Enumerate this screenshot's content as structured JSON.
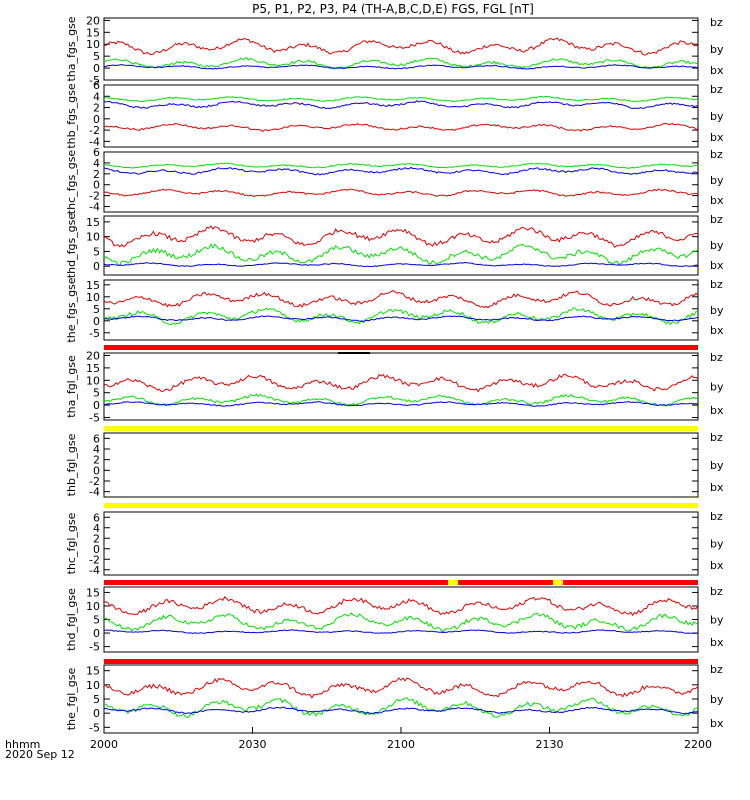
{
  "title": "P5, P1, P2, P3, P4 (TH-A,B,C,D,E) FGS, FGL [nT]",
  "bottom_label": {
    "line1": "hhmm",
    "line2": "2020 Sep 12"
  },
  "x_ticks": [
    "2000",
    "2030",
    "2100",
    "2130",
    "2200"
  ],
  "legend": {
    "bz": "bz",
    "by": "by",
    "bx": "bx"
  },
  "colors": {
    "bz": "#e00000",
    "by": "#00e000",
    "bx": "#0000e0",
    "flag_red": "#ff0000",
    "flag_yellow": "#ffff00",
    "axis": "#000000"
  },
  "chart_data": [
    {
      "type": "line",
      "ylabel": "tha_fgs_gse",
      "yticks": [
        "20",
        "15",
        "10",
        "5",
        "0",
        "-5"
      ],
      "ylim": [
        -5,
        21
      ],
      "has_data": true,
      "x": [
        "2000",
        "2030",
        "2100",
        "2130",
        "2200"
      ],
      "series": [
        {
          "name": "bz",
          "level": 9,
          "amp": 3
        },
        {
          "name": "by",
          "level": 2,
          "amp": 2
        },
        {
          "name": "bx",
          "level": 0.5,
          "amp": 0.8
        }
      ]
    },
    {
      "type": "line",
      "ylabel": "thb_fgs_gse",
      "yticks": [
        "6",
        "4",
        "2",
        "0",
        "-2",
        "-4"
      ],
      "ylim": [
        -5,
        6
      ],
      "has_data": true,
      "series": [
        {
          "name": "by",
          "level": 3.5,
          "amp": 0.4
        },
        {
          "name": "bx",
          "level": 2.5,
          "amp": 0.6
        },
        {
          "name": "bz",
          "level": -1.5,
          "amp": 0.6
        }
      ]
    },
    {
      "type": "line",
      "ylabel": "thc_fgs_gse",
      "yticks": [
        "6",
        "4",
        "2",
        "0",
        "-2",
        "-4"
      ],
      "ylim": [
        -5,
        6
      ],
      "has_data": true,
      "series": [
        {
          "name": "by",
          "level": 3.5,
          "amp": 0.4
        },
        {
          "name": "bx",
          "level": 2.5,
          "amp": 0.6
        },
        {
          "name": "bz",
          "level": -1.5,
          "amp": 0.6
        }
      ]
    },
    {
      "type": "line",
      "ylabel": "thd_fgs_gse",
      "yticks": [
        "15",
        "10",
        "5",
        "0"
      ],
      "ylim": [
        -3,
        17
      ],
      "has_data": true,
      "series": [
        {
          "name": "bz",
          "level": 10,
          "amp": 3
        },
        {
          "name": "by",
          "level": 4,
          "amp": 3
        },
        {
          "name": "bx",
          "level": 0.5,
          "amp": 0.6
        }
      ]
    },
    {
      "type": "line",
      "ylabel": "the_fgs_gse",
      "yticks": [
        "15",
        "10",
        "5",
        "0",
        "-5"
      ],
      "ylim": [
        -8,
        17
      ],
      "has_data": true,
      "series": [
        {
          "name": "bz",
          "level": 9,
          "amp": 3
        },
        {
          "name": "by",
          "level": 2,
          "amp": 3
        },
        {
          "name": "bx",
          "level": 1,
          "amp": 1
        }
      ]
    },
    {
      "type": "line",
      "ylabel": "tha_fgl_gse",
      "yticks": [
        "20",
        "15",
        "10",
        "5",
        "0",
        "-5"
      ],
      "ylim": [
        -6,
        21
      ],
      "has_data": true,
      "series": [
        {
          "name": "bz",
          "level": 9,
          "amp": 3
        },
        {
          "name": "by",
          "level": 2,
          "amp": 2
        },
        {
          "name": "bx",
          "level": 0.5,
          "amp": 0.8
        }
      ]
    },
    {
      "type": "line",
      "ylabel": "thb_fgl_gse",
      "yticks": [
        "6",
        "4",
        "2",
        "0",
        "-2",
        "-4"
      ],
      "ylim": [
        -5,
        7
      ],
      "has_data": false,
      "series": []
    },
    {
      "type": "line",
      "ylabel": "thc_fgl_gse",
      "yticks": [
        "6",
        "4",
        "2",
        "0",
        "-2",
        "-4"
      ],
      "ylim": [
        -5,
        7
      ],
      "has_data": false,
      "series": []
    },
    {
      "type": "line",
      "ylabel": "thd_fgl_gse",
      "yticks": [
        "15",
        "10",
        "5",
        "0",
        "-5"
      ],
      "ylim": [
        -7,
        17
      ],
      "has_data": true,
      "series": [
        {
          "name": "bz",
          "level": 10,
          "amp": 3
        },
        {
          "name": "by",
          "level": 4,
          "amp": 3
        },
        {
          "name": "bx",
          "level": 0.5,
          "amp": 0.6
        }
      ]
    },
    {
      "type": "line",
      "ylabel": "the_fgl_gse",
      "yticks": [
        "15",
        "10",
        "5",
        "0",
        "-5"
      ],
      "ylim": [
        -7,
        17
      ],
      "has_data": true,
      "series": [
        {
          "name": "bz",
          "level": 9,
          "amp": 3
        },
        {
          "name": "by",
          "level": 2,
          "amp": 3
        },
        {
          "name": "bx",
          "level": 1,
          "amp": 1
        }
      ]
    }
  ]
}
